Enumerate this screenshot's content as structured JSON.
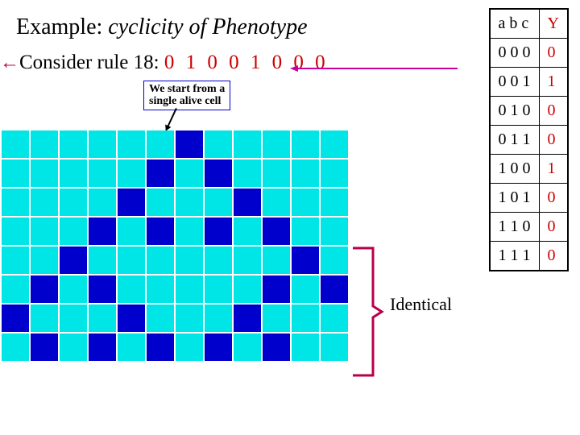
{
  "title_plain": "Example: ",
  "title_italic": "cyclicity of Phenotype",
  "subtitle_prefix": "Consider rule 18:  ",
  "rule_bits": "0 1 0 0 1 0 0 0",
  "callout_l1": "We start from a",
  "callout_l2": "single alive cell",
  "identical_label": "Identical",
  "colors": {
    "dead": "#00e5e5",
    "alive": "#0000cc",
    "bracket": "#b8004a",
    "arrow": "#cc0099"
  },
  "grid": {
    "cols": 12,
    "rows": 8,
    "cells": [
      [
        0,
        0,
        0,
        0,
        0,
        0,
        1,
        0,
        0,
        0,
        0,
        0
      ],
      [
        0,
        0,
        0,
        0,
        0,
        1,
        0,
        1,
        0,
        0,
        0,
        0
      ],
      [
        0,
        0,
        0,
        0,
        1,
        0,
        0,
        0,
        1,
        0,
        0,
        0
      ],
      [
        0,
        0,
        0,
        1,
        0,
        1,
        0,
        1,
        0,
        1,
        0,
        0
      ],
      [
        0,
        0,
        1,
        0,
        0,
        0,
        0,
        0,
        0,
        0,
        1,
        0
      ],
      [
        0,
        1,
        0,
        1,
        0,
        0,
        0,
        0,
        0,
        1,
        0,
        1
      ],
      [
        1,
        0,
        0,
        0,
        1,
        0,
        0,
        0,
        1,
        0,
        0,
        0
      ],
      [
        0,
        1,
        0,
        1,
        0,
        1,
        0,
        1,
        0,
        1,
        0,
        0
      ]
    ]
  },
  "truth_table": {
    "header_abc": "a b c",
    "header_y": "Y",
    "rows": [
      {
        "abc": "0 0 0",
        "y": "0"
      },
      {
        "abc": "0 0 1",
        "y": "1"
      },
      {
        "abc": "0 1 0",
        "y": "0"
      },
      {
        "abc": "0 1 1",
        "y": "0"
      },
      {
        "abc": "1 0 0",
        "y": "1"
      },
      {
        "abc": "1 0 1",
        "y": "0"
      },
      {
        "abc": "1 1 0",
        "y": "0"
      },
      {
        "abc": "1 1 1",
        "y": "0"
      }
    ]
  }
}
